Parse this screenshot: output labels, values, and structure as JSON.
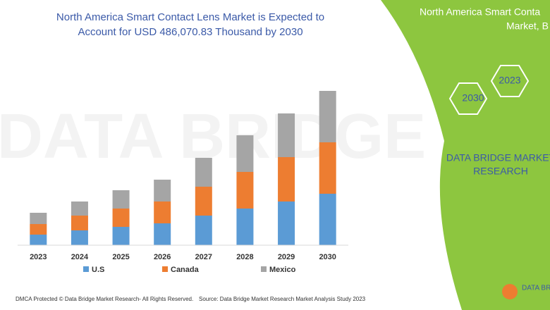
{
  "chart_data": {
    "type": "stacked_bar",
    "title": [
      "North America Smart Contact Lens Market is Expected to",
      "Account for USD 486,070.83 Thousand by 2030"
    ],
    "categories": [
      "2023",
      "2024",
      "2025",
      "2026",
      "2027",
      "2028",
      "2029",
      "2030"
    ],
    "series": [
      {
        "name": "U.S",
        "color": "#5b9bd5",
        "values": [
          15,
          21,
          26,
          31,
          42,
          52,
          62,
          73
        ]
      },
      {
        "name": "Canada",
        "color": "#ed7d31",
        "values": [
          15,
          21,
          26,
          31,
          41,
          52,
          63,
          73
        ]
      },
      {
        "name": "Mexico",
        "color": "#a5a5a5",
        "values": [
          16,
          20,
          26,
          31,
          41,
          52,
          62,
          73
        ]
      }
    ],
    "ylim": [
      0,
      230
    ],
    "legend": "bottom"
  },
  "panel": {
    "heading": [
      "North America Smart Conta",
      "Market, B"
    ],
    "hexagons": [
      "2023",
      "2030"
    ],
    "brand": [
      "DATA BRIDGE MARKET",
      "RESEARCH"
    ],
    "logo": "DATA BRI"
  },
  "footer": {
    "left": "DMCA Protected © Data Bridge Market Research- All Rights Reserved.",
    "right": "Source: Data Bridge Market Research Market Analysis Study 2023"
  }
}
